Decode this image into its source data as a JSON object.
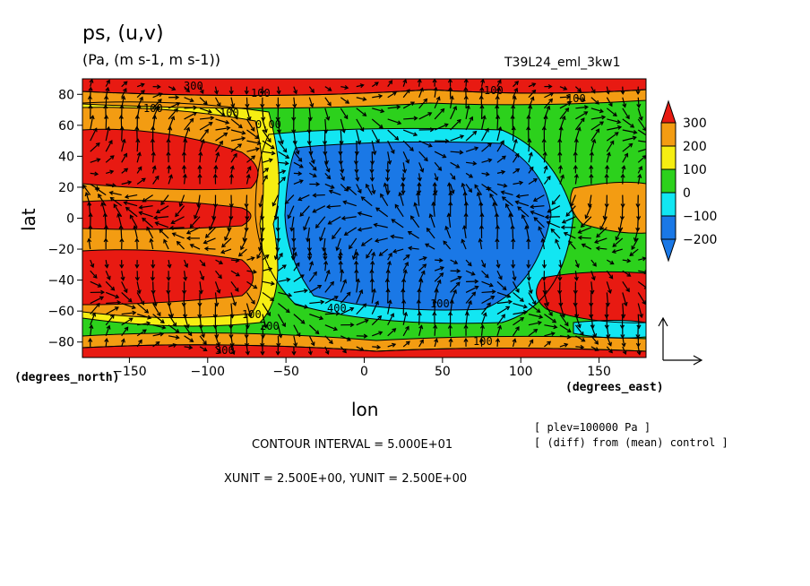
{
  "header": {
    "title": "ps, (u,v)",
    "units": "(Pa, (m s-1, m s-1))",
    "run": "T39L24_eml_3kw1"
  },
  "axis_notes": {
    "x_unit": "(degrees_east)",
    "y_unit": "(degrees_north)"
  },
  "footer": {
    "plev": "[ plev=100000 Pa ]",
    "diff": "[ (diff) from (mean) control ]",
    "contour_interval": "CONTOUR INTERVAL = 5.000E+01",
    "vector_units": "XUNIT = 2.500E+00, YUNIT = 2.500E+00"
  },
  "colors": {
    "red": "#e81a12",
    "orange": "#f39c12",
    "yellow": "#f6ee12",
    "green": "#2cd11c",
    "cyan": "#12e6f2",
    "blue": "#1a78e6"
  },
  "chart_data": {
    "type": "heatmap",
    "title": "ps, (u,v)",
    "xlabel": "lon",
    "ylabel": "lat",
    "xlim": [
      -180,
      180
    ],
    "ylim": [
      -90,
      90
    ],
    "xticks": [
      -150,
      -100,
      -50,
      0,
      50,
      100,
      150
    ],
    "yticks": [
      80,
      60,
      40,
      20,
      0,
      -20,
      -40,
      -60,
      -80
    ],
    "colorbar": {
      "levels": [
        300,
        200,
        100,
        0,
        -100,
        -200
      ],
      "bins": [
        {
          "range": "> 300",
          "color": "#e81a12"
        },
        {
          "range": "200-300",
          "color": "#f39c12"
        },
        {
          "range": "100-200",
          "color": "#f6ee12"
        },
        {
          "range": "0-100",
          "color": "#2cd11c"
        },
        {
          "range": "-100-0",
          "color": "#12e6f2"
        },
        {
          "range": "-200--100",
          "color": "#1a78e6"
        },
        {
          "range": "< -200",
          "color": "#1a78e6"
        }
      ]
    },
    "contour_labels": [
      "300",
      "100",
      "0.00",
      "100",
      "100",
      "100",
      "200",
      "300",
      "400",
      "100",
      "100",
      "100",
      "100"
    ],
    "field_description": {
      "features": [
        {
          "lon": -130,
          "lat": 5,
          "value": 350
        },
        {
          "lon": -130,
          "lat": 35,
          "value": 350
        },
        {
          "lon": -130,
          "lat": -35,
          "value": 350
        },
        {
          "lon": -90,
          "lat": 85,
          "value": 320
        },
        {
          "lon": -90,
          "lat": -85,
          "value": 320
        },
        {
          "lon": 60,
          "lat": 30,
          "value": -250
        },
        {
          "lon": 60,
          "lat": -20,
          "value": -250
        },
        {
          "lon": 150,
          "lat": -40,
          "value": 350
        },
        {
          "lon": 150,
          "lat": 25,
          "value": 250
        }
      ]
    }
  }
}
